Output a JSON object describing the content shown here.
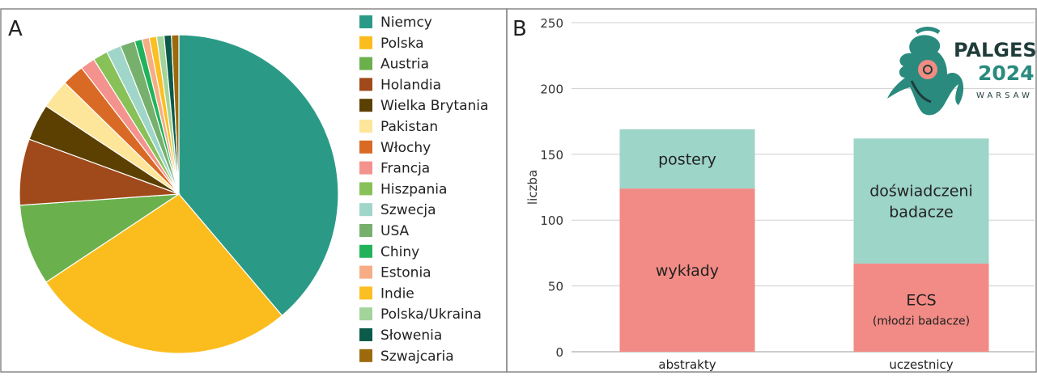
{
  "panels": {
    "a_label": "A",
    "b_label": "B"
  },
  "logo": {
    "name_line": "PALGES",
    "year_line": "2024",
    "city_line": "WARSAW",
    "colors": {
      "teal": "#2a8a7e",
      "coral": "#f28b82",
      "dark": "#1f3d3a"
    }
  },
  "chart_data": [
    {
      "type": "pie",
      "panel": "A",
      "start_angle_deg": 0,
      "direction": "clockwise",
      "slices": [
        {
          "label": "Niemcy",
          "value": 52,
          "color": "#2a9a87"
        },
        {
          "label": "Polska",
          "value": 36,
          "color": "#fbbd1e"
        },
        {
          "label": "Austria",
          "value": 11,
          "color": "#6ab04c"
        },
        {
          "label": "Holandia",
          "value": 9,
          "color": "#a0491a"
        },
        {
          "label": "Wielka Brytania",
          "value": 5,
          "color": "#5c4002"
        },
        {
          "label": "Pakistan",
          "value": 4,
          "color": "#fde599"
        },
        {
          "label": "Włochy",
          "value": 3,
          "color": "#d96a25"
        },
        {
          "label": "Francja",
          "value": 2,
          "color": "#f4928d"
        },
        {
          "label": "Hiszpania",
          "value": 2,
          "color": "#88c158"
        },
        {
          "label": "Szwecja",
          "value": 2,
          "color": "#9fd6c9"
        },
        {
          "label": "USA",
          "value": 2,
          "color": "#77b06d"
        },
        {
          "label": "Chiny",
          "value": 1,
          "color": "#22b35a"
        },
        {
          "label": "Estonia",
          "value": 1,
          "color": "#f6ad86"
        },
        {
          "label": "Indie",
          "value": 1,
          "color": "#fbbf24"
        },
        {
          "label": "Polska/Ukraina",
          "value": 1,
          "color": "#a3d49a"
        },
        {
          "label": "Słowenia",
          "value": 1,
          "color": "#0c5a4a"
        },
        {
          "label": "Szwajcaria",
          "value": 1,
          "color": "#9c6a0d"
        }
      ]
    },
    {
      "type": "bar",
      "stacked": true,
      "panel": "B",
      "categories": [
        "abstrakty",
        "uczestnicy"
      ],
      "ylabel": "liczba",
      "ylim": [
        0,
        250
      ],
      "yticks": [
        0,
        50,
        100,
        150,
        200,
        250
      ],
      "grid": true,
      "stacks": [
        {
          "category": "abstrakty",
          "segments": [
            {
              "label": "wykłady",
              "sublabel": "",
              "value": 124,
              "color": "#f28b85"
            },
            {
              "label": "postery",
              "sublabel": "",
              "value": 45,
              "color": "#9dd5c8"
            }
          ]
        },
        {
          "category": "uczestnicy",
          "segments": [
            {
              "label": "ECS",
              "sublabel": "(młodzi badacze)",
              "value": 67,
              "color": "#f28b85"
            },
            {
              "label": "doświadczeni badacze",
              "sublabel": "",
              "value": 95,
              "color": "#9dd5c8"
            }
          ]
        }
      ]
    }
  ]
}
